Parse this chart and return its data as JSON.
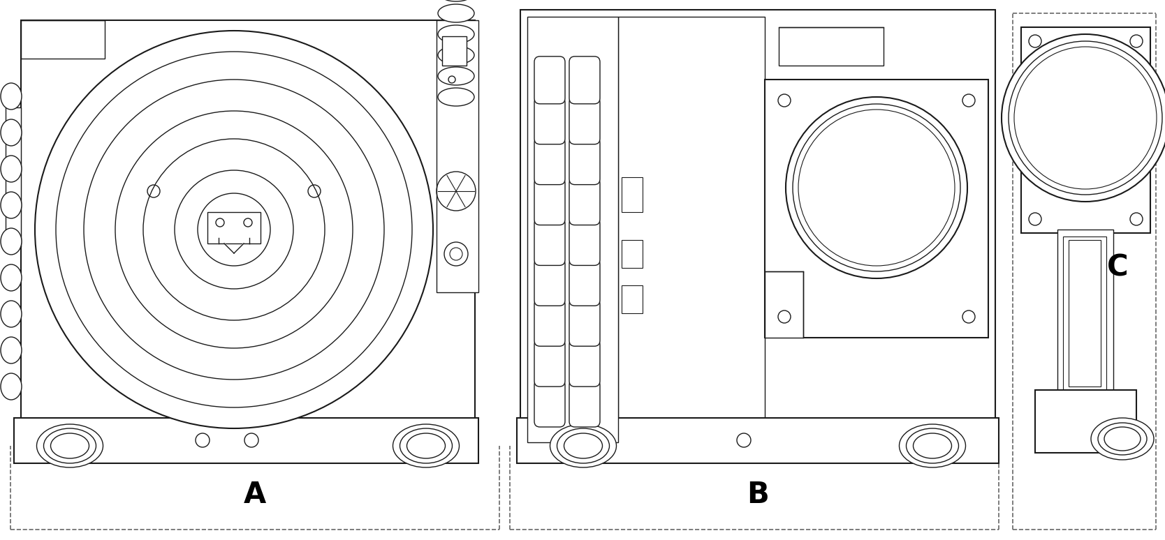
{
  "bg_color": "#ffffff",
  "line_color": "#1a1a1a",
  "dashed_color": "#666666",
  "label_color": "#000000",
  "figsize": [
    16.68,
    7.74
  ],
  "dpi": 100,
  "labels_pos": {
    "A": [
      0.218,
      0.072
    ],
    "B": [
      0.616,
      0.072
    ],
    "C": [
      0.952,
      0.38
    ]
  },
  "label_fontsize": 30,
  "label_fontweight": "bold"
}
